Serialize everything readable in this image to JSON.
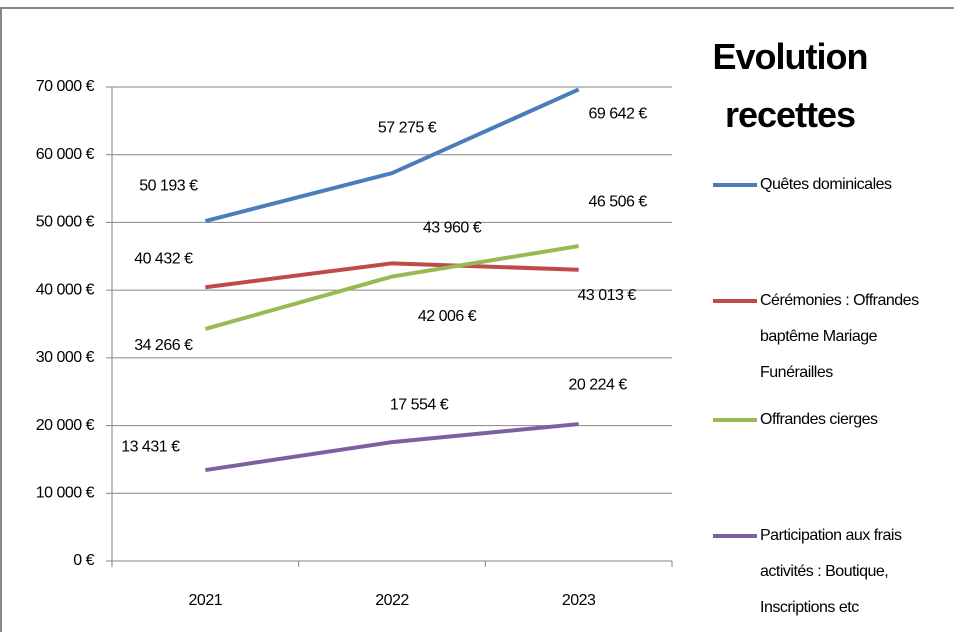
{
  "chart_data": {
    "type": "line",
    "title": "Evolution recettes",
    "categories": [
      "2021",
      "2022",
      "2023"
    ],
    "series": [
      {
        "name": "Quêtes dominicales",
        "color": "#4a7ebb",
        "values": [
          50193,
          57275,
          69642
        ],
        "value_labels": [
          "50 193 €",
          "57 275 €",
          "69 642 €"
        ]
      },
      {
        "name": "Cérémonies : Offrandes baptême Mariage Funérailles",
        "color": "#be4b48",
        "values": [
          40432,
          43960,
          43013
        ],
        "value_labels": [
          "40 432 €",
          "43 960 €",
          "43 013 €"
        ]
      },
      {
        "name": "Offrandes cierges",
        "color": "#98b954",
        "values": [
          34266,
          42006,
          46506
        ],
        "value_labels": [
          "34 266 €",
          "42 006 €",
          "46 506 €"
        ]
      },
      {
        "name": "Participation aux frais activités : Boutique, Inscriptions etc",
        "color": "#7d60a0",
        "values": [
          13431,
          17554,
          20224
        ],
        "value_labels": [
          "13 431 €",
          "17 554 €",
          "20 224 €"
        ]
      }
    ],
    "ylim": [
      0,
      70000
    ],
    "yticks": [
      {
        "value": 0,
        "label": "0 €"
      },
      {
        "value": 10000,
        "label": "10 000 €"
      },
      {
        "value": 20000,
        "label": "20 000 €"
      },
      {
        "value": 30000,
        "label": "30 000 €"
      },
      {
        "value": 40000,
        "label": "40 000 €"
      },
      {
        "value": 50000,
        "label": "50 000 €"
      },
      {
        "value": 60000,
        "label": "60 000 €"
      },
      {
        "value": 70000,
        "label": "70 000 €"
      }
    ],
    "grid": true,
    "legend": "right"
  }
}
